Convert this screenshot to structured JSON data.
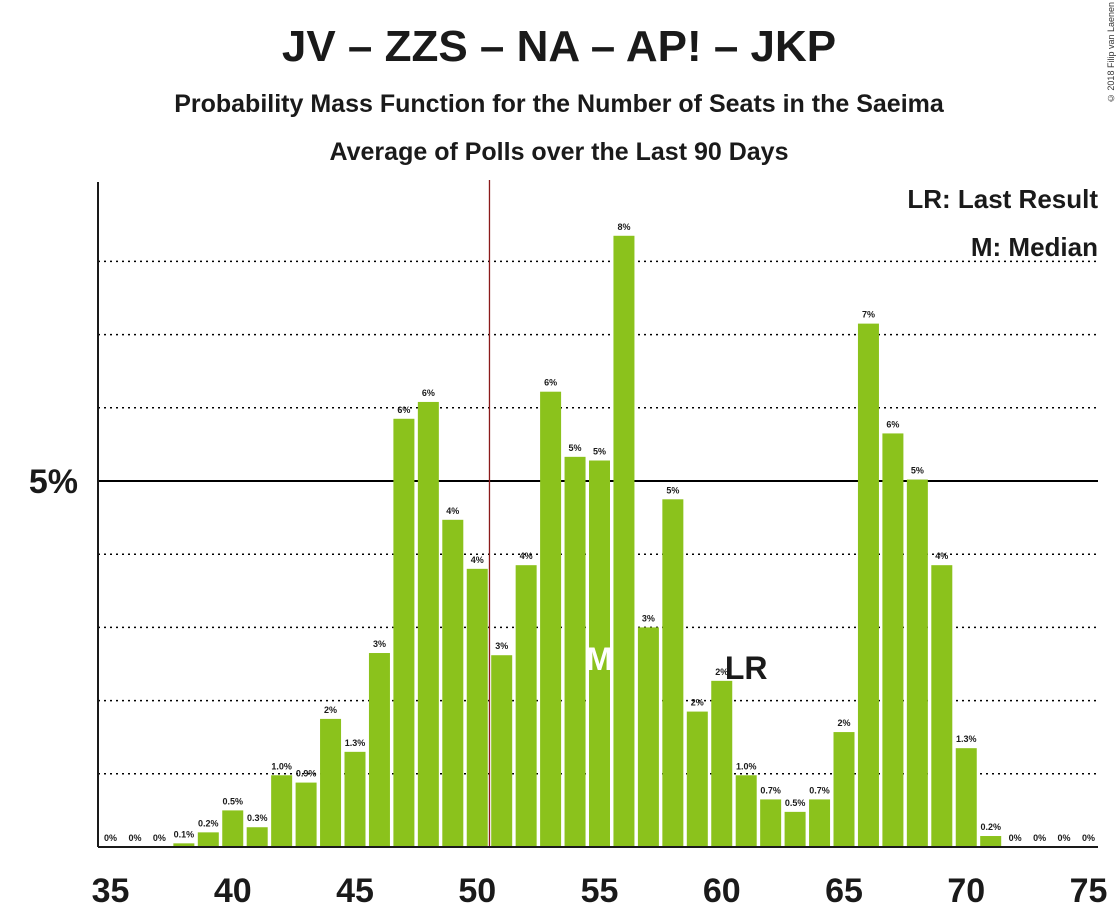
{
  "chart_data": {
    "type": "bar",
    "title": "JV – ZZS – NA – AP! – JKP",
    "subtitle_1": "Probability Mass Function for the Number of Seats in the Saeima",
    "subtitle_2": "Average of Polls over the Last 90 Days",
    "copyright": "© 2018 Filip van Laenen",
    "legend": {
      "last_result": "LR: Last Result",
      "median": "M: Median"
    },
    "y_tick_label": "5%",
    "x_ticks": [
      35,
      40,
      45,
      50,
      55,
      60,
      65,
      70,
      75
    ],
    "x_tick_labels": [
      "35",
      "40",
      "45",
      "50",
      "55",
      "60",
      "65",
      "70",
      "75"
    ],
    "ylim": [
      0,
      9
    ],
    "x": [
      35,
      36,
      37,
      38,
      39,
      40,
      41,
      42,
      43,
      44,
      45,
      46,
      47,
      48,
      49,
      50,
      51,
      52,
      53,
      54,
      55,
      56,
      57,
      58,
      59,
      60,
      61,
      62,
      63,
      64,
      65,
      66,
      67,
      68,
      69,
      70,
      71,
      72,
      73,
      74,
      75
    ],
    "values": [
      0,
      0,
      0,
      0.05,
      0.2,
      0.5,
      0.27,
      0.98,
      0.88,
      1.75,
      1.3,
      2.65,
      5.85,
      6.08,
      4.47,
      3.8,
      2.62,
      3.85,
      6.22,
      5.33,
      5.28,
      8.35,
      3.0,
      4.75,
      1.85,
      2.27,
      0.98,
      0.65,
      0.48,
      0.65,
      1.57,
      7.15,
      5.65,
      5.02,
      3.85,
      1.35,
      0.15,
      0,
      0,
      0,
      0
    ],
    "labels": [
      "0%",
      "0%",
      "0%",
      "0.1%",
      "0.2%",
      "0.5%",
      "0.3%",
      "1.0%",
      "0.9%",
      "2%",
      "1.3%",
      "3%",
      "6%",
      "6%",
      "4%",
      "4%",
      "3%",
      "4%",
      "6%",
      "5%",
      "5%",
      "8%",
      "3%",
      "5%",
      "2%",
      "2%",
      "1.0%",
      "0.7%",
      "0.5%",
      "0.7%",
      "2%",
      "7%",
      "6%",
      "5%",
      "4%",
      "1.3%",
      "0.2%",
      "0%",
      "0%",
      "0%",
      "0%"
    ],
    "last_result": 51,
    "last_result_label": "LR",
    "median": 55,
    "median_label": "M",
    "grid": true,
    "colors": {
      "bar": "#8bc21c",
      "last_result_line": "#8b1a1a",
      "axis": "#1a1a1a"
    }
  }
}
